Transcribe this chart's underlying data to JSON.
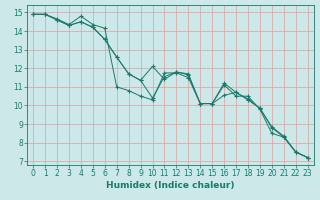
{
  "xlabel": "Humidex (Indice chaleur)",
  "ylabel": "",
  "xlim": [
    -0.5,
    23.5
  ],
  "ylim": [
    6.8,
    15.4
  ],
  "background_color": "#cce8e8",
  "grid_color": "#dba0a0",
  "line_color": "#1a7a6a",
  "lines": [
    {
      "x": [
        0,
        1,
        2,
        3,
        4,
        5,
        6,
        7,
        8,
        9,
        10,
        11,
        12,
        13,
        14,
        15,
        16,
        17,
        18,
        19,
        20,
        21,
        22,
        23
      ],
      "y": [
        14.9,
        14.9,
        14.65,
        14.35,
        14.8,
        14.35,
        14.15,
        11.0,
        10.8,
        10.5,
        10.3,
        11.75,
        11.75,
        11.5,
        10.1,
        10.1,
        11.1,
        10.5,
        10.5,
        9.8,
        8.5,
        8.3,
        7.5,
        7.2
      ]
    },
    {
      "x": [
        0,
        1,
        2,
        3,
        4,
        5,
        6,
        7,
        8,
        9,
        10,
        11,
        12,
        13,
        14,
        15,
        16,
        17,
        18,
        19,
        20,
        21,
        22,
        23
      ],
      "y": [
        14.9,
        14.9,
        14.6,
        14.3,
        14.5,
        14.2,
        13.55,
        12.6,
        11.7,
        11.35,
        10.4,
        11.55,
        11.8,
        11.7,
        10.1,
        10.1,
        10.55,
        10.7,
        10.3,
        9.85,
        8.8,
        8.3,
        7.5,
        7.2
      ]
    },
    {
      "x": [
        0,
        1,
        2,
        3,
        4,
        5,
        6,
        7,
        8,
        9,
        10,
        11,
        12,
        13,
        14,
        15,
        16,
        17,
        18,
        19,
        20,
        21,
        22,
        23
      ],
      "y": [
        14.9,
        14.9,
        14.6,
        14.3,
        14.5,
        14.2,
        13.55,
        12.6,
        11.7,
        11.35,
        12.1,
        11.4,
        11.8,
        11.65,
        10.1,
        10.1,
        11.2,
        10.7,
        10.35,
        9.85,
        8.85,
        8.35,
        7.5,
        7.2
      ]
    }
  ],
  "xticks": [
    0,
    1,
    2,
    3,
    4,
    5,
    6,
    7,
    8,
    9,
    10,
    11,
    12,
    13,
    14,
    15,
    16,
    17,
    18,
    19,
    20,
    21,
    22,
    23
  ],
  "yticks": [
    7,
    8,
    9,
    10,
    11,
    12,
    13,
    14,
    15
  ],
  "label_fontsize": 6.5,
  "tick_fontsize": 5.5
}
